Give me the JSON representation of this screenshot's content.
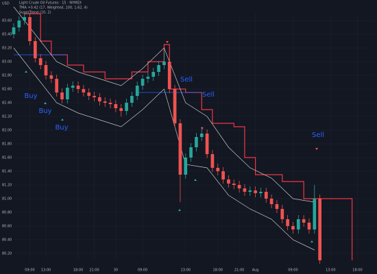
{
  "chart_data": {
    "type": "candlestick",
    "currency": "USD",
    "legend_lines": [
      "Light Crude Oil Futures · 15 · NYMEX",
      "TMA +0.42 (17, Weighted, 100, 1.62, 4)",
      "SuperTrend (10, 2)"
    ],
    "up_color": "#26a69a",
    "down_color": "#ef5350",
    "x": [
      0,
      1,
      2,
      3,
      4,
      5,
      6,
      7,
      8,
      9,
      10,
      11,
      12,
      13,
      14,
      15,
      16,
      17,
      18,
      19,
      20,
      21,
      22,
      23,
      24,
      25,
      26,
      27,
      28,
      29,
      30,
      31,
      32,
      33,
      34,
      35,
      36,
      37,
      38,
      39,
      40,
      41,
      42,
      43,
      44,
      45,
      46,
      47,
      48,
      49,
      50,
      51,
      52,
      53,
      54,
      55,
      56,
      57
    ],
    "open": [
      83.4,
      83.5,
      83.6,
      83.65,
      83.3,
      83.05,
      82.95,
      82.8,
      82.75,
      82.55,
      82.45,
      82.62,
      82.65,
      82.6,
      82.55,
      82.5,
      82.48,
      82.42,
      82.4,
      82.38,
      82.32,
      82.28,
      82.4,
      82.5,
      82.65,
      82.75,
      82.78,
      82.85,
      82.95,
      83.0,
      82.6,
      82.1,
      81.35,
      81.6,
      81.75,
      81.9,
      81.95,
      81.65,
      81.45,
      81.4,
      81.28,
      81.22,
      81.2,
      81.15,
      81.1,
      81.12,
      81.08,
      81.1,
      81.0,
      80.92,
      80.85,
      80.7,
      80.6,
      80.55,
      80.7,
      80.65,
      80.55,
      81.0
    ],
    "high": [
      83.56,
      83.66,
      83.71,
      83.71,
      83.36,
      83.11,
      83.01,
      82.86,
      82.81,
      82.61,
      82.68,
      82.71,
      82.71,
      82.66,
      82.61,
      82.56,
      82.54,
      82.48,
      82.46,
      82.44,
      82.38,
      82.46,
      82.56,
      82.71,
      82.81,
      82.84,
      82.91,
      83.01,
      83.15,
      83.06,
      82.66,
      82.16,
      81.66,
      81.81,
      81.96,
      82.05,
      82.01,
      81.71,
      81.51,
      81.46,
      81.34,
      81.28,
      81.26,
      81.21,
      81.18,
      81.18,
      81.16,
      81.16,
      81.06,
      80.98,
      80.91,
      80.76,
      80.66,
      80.76,
      80.76,
      80.71,
      81.2,
      81.06
    ],
    "low": [
      83.34,
      83.44,
      83.54,
      83.24,
      82.99,
      82.89,
      82.74,
      82.69,
      82.49,
      82.39,
      82.39,
      82.56,
      82.54,
      82.49,
      82.44,
      82.42,
      82.36,
      82.34,
      82.32,
      82.26,
      82.2,
      82.22,
      82.34,
      82.44,
      82.59,
      82.69,
      82.72,
      82.79,
      82.89,
      82.54,
      82.04,
      80.95,
      81.29,
      81.54,
      81.69,
      81.84,
      81.59,
      81.39,
      81.34,
      81.22,
      81.16,
      81.14,
      81.09,
      81.04,
      81.04,
      81.02,
      81.02,
      80.94,
      80.86,
      80.79,
      80.64,
      80.54,
      80.49,
      80.49,
      80.59,
      80.49,
      80.49,
      80.05
    ],
    "close": [
      83.5,
      83.6,
      83.65,
      83.3,
      83.05,
      82.95,
      82.8,
      82.75,
      82.55,
      82.45,
      82.62,
      82.65,
      82.6,
      82.55,
      82.5,
      82.48,
      82.42,
      82.4,
      82.38,
      82.32,
      82.28,
      82.4,
      82.5,
      82.65,
      82.75,
      82.78,
      82.85,
      82.95,
      83.0,
      82.6,
      82.1,
      81.35,
      81.6,
      81.75,
      81.9,
      81.95,
      81.65,
      81.45,
      81.4,
      81.28,
      81.22,
      81.2,
      81.15,
      81.1,
      81.12,
      81.08,
      81.1,
      81.0,
      80.92,
      80.85,
      80.7,
      80.6,
      80.55,
      80.7,
      80.65,
      80.55,
      81.0,
      80.1
    ],
    "lines": [
      {
        "color": "#f23645",
        "style": "step",
        "x": [
          2,
          5,
          7,
          10,
          13,
          17,
          22,
          25,
          28,
          29,
          32,
          35,
          37,
          41,
          43,
          45,
          50,
          54,
          56,
          63
        ],
        "values": [
          83.7,
          83.3,
          83.1,
          82.95,
          82.85,
          82.75,
          82.85,
          83.0,
          83.25,
          82.6,
          82.55,
          82.3,
          82.1,
          82.05,
          81.6,
          81.35,
          81.25,
          81.0,
          81.0,
          80.1
        ]
      },
      {
        "color": "#2962ff",
        "style": "line",
        "x": [
          0,
          10,
          16,
          23,
          35
        ],
        "values": [
          83.1,
          83.1,
          null,
          82.55,
          82.55
        ]
      },
      {
        "color": "#c8c8c8",
        "style": "line",
        "x": [
          0,
          4,
          8,
          12,
          16,
          20,
          24,
          28,
          32,
          36,
          40,
          44,
          48,
          52,
          56
        ],
        "values": [
          83.8,
          83.4,
          83.0,
          82.85,
          82.75,
          82.65,
          82.9,
          83.2,
          82.4,
          82.2,
          81.75,
          81.45,
          81.3,
          81.0,
          80.95
        ]
      },
      {
        "color": "#c8c8c8",
        "style": "line",
        "x": [
          0,
          4,
          8,
          12,
          16,
          20,
          24,
          28,
          32,
          36,
          40,
          44,
          48,
          52,
          56
        ],
        "values": [
          83.2,
          82.8,
          82.4,
          82.25,
          82.15,
          82.05,
          82.3,
          82.6,
          81.5,
          81.45,
          81.05,
          80.85,
          80.7,
          80.4,
          80.25
        ]
      }
    ],
    "signals": [
      {
        "label": "Buy",
        "color": "#2962ff"
      },
      {
        "label": "Buy",
        "color": "#2962ff"
      },
      {
        "label": "Buy",
        "color": "#2962ff"
      },
      {
        "label": "Sell",
        "color": "#2962ff"
      },
      {
        "label": "Sell",
        "color": "#2962ff"
      },
      {
        "label": "Sell",
        "color": "#2962ff"
      }
    ],
    "xlim": [
      0,
      67
    ],
    "xticks": [
      {
        "value": 3,
        "label": "09:00"
      },
      {
        "value": 6,
        "label": "13:00"
      },
      {
        "value": 12,
        "label": "18:00"
      },
      {
        "value": 15,
        "label": "21:00"
      },
      {
        "value": 19,
        "label": "30"
      },
      {
        "value": 24,
        "label": "09:00"
      },
      {
        "value": 32,
        "label": "13:00"
      },
      {
        "value": 38,
        "label": "18:00"
      },
      {
        "value": 42,
        "label": "21:00"
      },
      {
        "value": 45,
        "label": "Aug"
      },
      {
        "value": 52,
        "label": "09:00"
      },
      {
        "value": 59,
        "label": "13:00"
      },
      {
        "value": 64,
        "label": "18:00"
      }
    ],
    "ylim": [
      80.1,
      83.7
    ],
    "yticks": [
      {
        "value": 83.6,
        "label": "83.60"
      },
      {
        "value": 83.4,
        "label": "83.40"
      },
      {
        "value": 83.2,
        "label": "83.20"
      },
      {
        "value": 83.0,
        "label": "83.00"
      },
      {
        "value": 82.8,
        "label": "82.80"
      },
      {
        "value": 82.6,
        "label": "82.60"
      },
      {
        "value": 82.4,
        "label": "82.40"
      },
      {
        "value": 82.2,
        "label": "82.20"
      },
      {
        "value": 82.0,
        "label": "82.00"
      },
      {
        "value": 81.8,
        "label": "81.80"
      },
      {
        "value": 81.6,
        "label": "81.60"
      },
      {
        "value": 81.4,
        "label": "81.40"
      },
      {
        "value": 81.2,
        "label": "81.20"
      },
      {
        "value": 81.0,
        "label": "81.00"
      },
      {
        "value": 80.8,
        "label": "80.80"
      },
      {
        "value": 80.6,
        "label": "80.60"
      },
      {
        "value": 80.4,
        "label": "80.40"
      },
      {
        "value": 80.2,
        "label": "80.20"
      }
    ],
    "grid": true
  }
}
